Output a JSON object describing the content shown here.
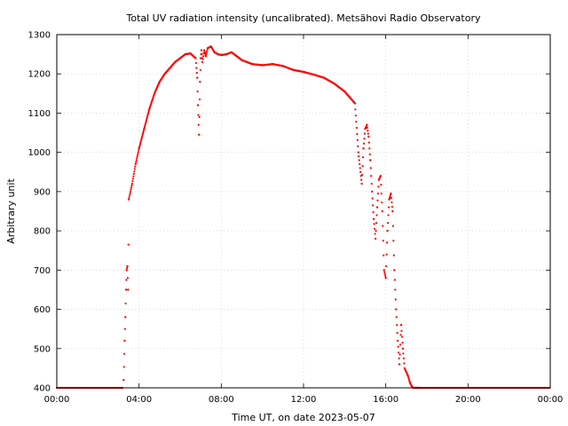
{
  "chart_data": {
    "type": "scatter",
    "title": "Total UV radiation intensity (uncalibrated). Metsähovi Radio Observatory",
    "xlabel": "Time UT, on date 2023-05-07",
    "ylabel": "Arbitrary unit",
    "xlim": [
      "00:00",
      "24:00"
    ],
    "ylim": [
      400,
      1300
    ],
    "x_ticks": [
      "00:00",
      "04:00",
      "08:00",
      "12:00",
      "16:00",
      "20:00",
      "00:00"
    ],
    "y_ticks": [
      400,
      500,
      600,
      700,
      800,
      900,
      1000,
      1100,
      1200,
      1300
    ],
    "grid": true,
    "marker_color": "#ff0000",
    "series": [
      {
        "x": [
          "03:15",
          "03:18",
          "03:20",
          "03:22",
          "03:24",
          "03:26",
          "03:28",
          "03:30",
          "03:40",
          "03:50",
          "04:00",
          "04:15",
          "04:30",
          "04:45",
          "05:00",
          "05:15",
          "05:30",
          "05:45",
          "06:00",
          "06:15",
          "06:30",
          "06:45",
          "06:50",
          "06:52",
          "06:55",
          "06:58",
          "07:00",
          "07:02",
          "07:05",
          "07:10",
          "07:15",
          "07:20",
          "07:30",
          "07:40",
          "07:50",
          "08:00",
          "08:15",
          "08:30",
          "08:45",
          "09:00",
          "09:30",
          "10:00",
          "10:30",
          "11:00",
          "11:30",
          "12:00",
          "12:30",
          "13:00",
          "13:30",
          "13:45",
          "14:00",
          "14:15",
          "14:30",
          "14:40",
          "14:50",
          "14:55",
          "15:00",
          "15:05",
          "15:10",
          "15:15",
          "15:20",
          "15:25",
          "15:30",
          "15:35",
          "15:40",
          "15:45",
          "15:50",
          "15:55",
          "16:00",
          "16:05",
          "16:10",
          "16:15",
          "16:20",
          "16:25",
          "16:30",
          "16:35",
          "16:40",
          "16:45",
          "16:50",
          "16:55",
          "17:00",
          "17:05",
          "17:10",
          "17:15",
          "17:20",
          "17:25",
          "17:30",
          "17:35",
          "17:40"
        ],
        "y": [
          420,
          520,
          580,
          650,
          700,
          710,
          650,
          880,
          920,
          970,
          1010,
          1060,
          1110,
          1150,
          1180,
          1200,
          1215,
          1230,
          1240,
          1250,
          1252,
          1240,
          1190,
          1120,
          1045,
          1180,
          1240,
          1260,
          1230,
          1260,
          1245,
          1265,
          1270,
          1255,
          1250,
          1248,
          1250,
          1255,
          1245,
          1235,
          1225,
          1222,
          1225,
          1220,
          1210,
          1205,
          1198,
          1190,
          1175,
          1165,
          1155,
          1140,
          1125,
          1000,
          920,
          1010,
          1060,
          1070,
          1040,
          980,
          900,
          830,
          780,
          860,
          930,
          940,
          850,
          700,
          680,
          800,
          880,
          895,
          850,
          700,
          600,
          520,
          460,
          560,
          500,
          450,
          440,
          430,
          415,
          405,
          400,
          400,
          400,
          400,
          400
        ]
      }
    ]
  }
}
